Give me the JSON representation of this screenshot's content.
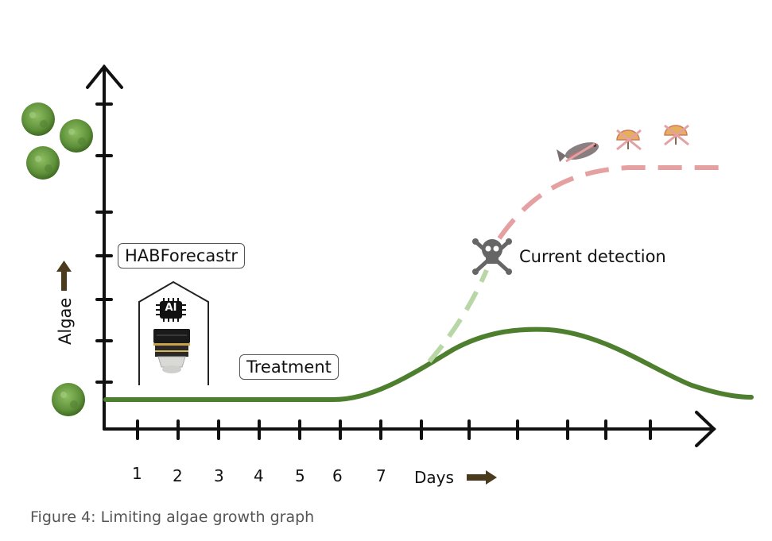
{
  "diagram": {
    "ylabel": "Algae",
    "xlabel": "Days",
    "x_ticks": [
      "1",
      "2",
      "3",
      "4",
      "5",
      "6",
      "7"
    ],
    "labels": {
      "forecast": "HABForecastr",
      "treatment": "Treatment",
      "detection": "Current detection",
      "chip": "AI"
    },
    "colors": {
      "axis": "#111111",
      "controlled_curve": "#4e7f2e",
      "uncontrolled_early": "#b9d7a6",
      "uncontrolled_late": "#e5a1a1",
      "arrow": "#4a3b1c",
      "algae": "#6ea04a"
    },
    "icons": [
      "algae-cell-icon",
      "ai-chip-icon",
      "microscope-icon",
      "skull-icon",
      "fish-icon",
      "beach-umbrella-icon"
    ]
  },
  "caption": "Figure 4: Limiting algae growth graph"
}
